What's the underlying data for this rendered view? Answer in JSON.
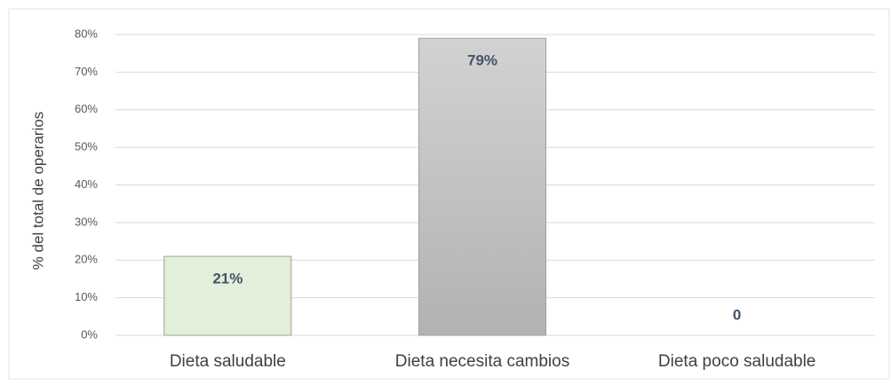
{
  "chart_data": {
    "type": "bar",
    "y_label": "% del total de operarios",
    "categories": [
      "Dieta saludable",
      "Dieta necesita cambios",
      "Dieta poco saludable"
    ],
    "values": [
      21,
      79,
      0
    ],
    "value_labels": [
      "21%",
      "79%",
      "0"
    ],
    "colors": [
      "#e2efda",
      "#c4c4c4",
      "#c4c4c4"
    ],
    "ylim": [
      0,
      80
    ],
    "yticks": [
      {
        "value": 0,
        "label": "0%"
      },
      {
        "value": 10,
        "label": "10%"
      },
      {
        "value": 20,
        "label": "20%"
      },
      {
        "value": 30,
        "label": "30%"
      },
      {
        "value": 40,
        "label": "40%"
      },
      {
        "value": 50,
        "label": "50%"
      },
      {
        "value": 60,
        "label": "60%"
      },
      {
        "value": 70,
        "label": "70%"
      },
      {
        "value": 80,
        "label": "80%"
      }
    ],
    "grid": true
  }
}
